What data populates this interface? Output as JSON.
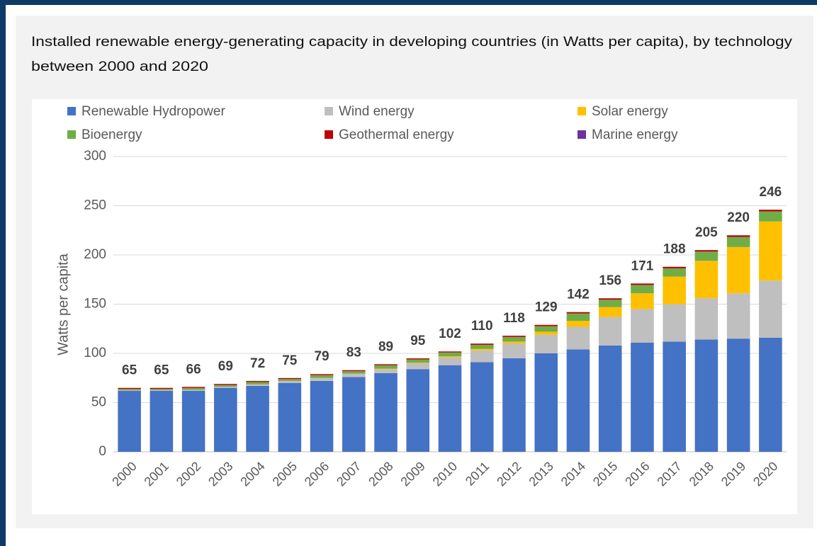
{
  "chart_data": {
    "type": "stacked_bar",
    "title": "Installed renewable energy-generating capacity in developing countries (in Watts per capita), by technology",
    "subtitle": "between 2000 and 2020",
    "ylabel": "Watts per capita",
    "categories": [
      "2000",
      "2001",
      "2002",
      "2003",
      "2004",
      "2005",
      "2006",
      "2007",
      "2008",
      "2009",
      "2010",
      "2011",
      "2012",
      "2013",
      "2014",
      "2015",
      "2016",
      "2017",
      "2018",
      "2019",
      "2020"
    ],
    "series": [
      {
        "name": "Renewable Hydropower",
        "color": "#4472c4",
        "values": [
          62,
          62,
          62,
          65,
          67,
          70,
          72,
          76,
          80,
          84,
          88,
          91,
          95,
          100,
          104,
          108,
          111,
          112,
          114,
          115,
          116
        ]
      },
      {
        "name": "Wind energy",
        "color": "#bfbfbf",
        "values": [
          0.5,
          0.7,
          1,
          1.2,
          1.5,
          2,
          3,
          3.5,
          4,
          6,
          8,
          12,
          15,
          19,
          23,
          29,
          34,
          38,
          42,
          46,
          58
        ]
      },
      {
        "name": "Solar energy",
        "color": "#ffc000",
        "values": [
          0,
          0,
          0,
          0,
          0,
          0,
          0,
          0,
          0.5,
          0.5,
          1,
          1.5,
          2,
          3,
          6,
          10,
          16,
          28,
          38,
          47,
          60
        ]
      },
      {
        "name": "Bioenergy",
        "color": "#70ad47",
        "values": [
          1.4,
          1.2,
          1.9,
          1.7,
          2.4,
          1.9,
          2.9,
          2.4,
          3.4,
          3.4,
          3.9,
          4.2,
          4.7,
          5.6,
          7.6,
          7.5,
          8.5,
          8.4,
          9.4,
          10.3,
          10.2
        ]
      },
      {
        "name": "Geothermal energy",
        "color": "#c00000",
        "values": [
          1,
          1,
          1,
          1,
          1,
          1,
          1,
          1,
          1,
          1,
          1,
          1.2,
          1.2,
          1.3,
          1.3,
          1.4,
          1.4,
          1.5,
          1.5,
          1.6,
          1.7
        ]
      },
      {
        "name": "Marine energy",
        "color": "#7030a0",
        "values": [
          0.1,
          0.1,
          0.1,
          0.1,
          0.1,
          0.1,
          0.1,
          0.1,
          0.1,
          0.1,
          0.1,
          0.1,
          0.1,
          0.1,
          0.1,
          0.1,
          0.1,
          0.1,
          0.1,
          0.1,
          0.1
        ]
      }
    ],
    "totals": [
      65,
      65,
      66,
      69,
      72,
      75,
      79,
      83,
      89,
      95,
      102,
      110,
      118,
      129,
      142,
      156,
      171,
      188,
      205,
      220,
      246
    ],
    "ylim": [
      0,
      300
    ],
    "yticks": [
      0,
      50,
      100,
      150,
      200,
      250,
      300
    ],
    "grid": true,
    "legend": "top"
  }
}
